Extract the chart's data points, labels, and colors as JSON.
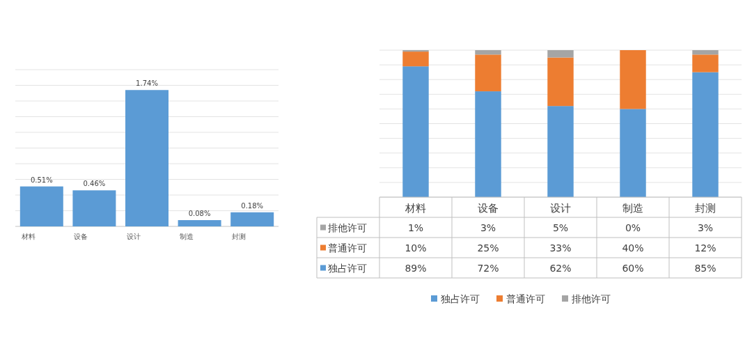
{
  "chart_data": [
    {
      "type": "bar",
      "categories": [
        "材料",
        "设备",
        "设计",
        "制造",
        "封测"
      ],
      "values": [
        0.51,
        0.46,
        1.74,
        0.08,
        0.18
      ],
      "value_labels": [
        "0.51%",
        "0.46%",
        "1.74%",
        "0.08%",
        "0.18%"
      ],
      "color": "#5b9bd5",
      "ylim": [
        0,
        2
      ],
      "yticks": [
        {
          "value": 0,
          "label": null
        },
        {
          "value": 0.2,
          "label": null
        },
        {
          "value": 0.4,
          "label": null
        },
        {
          "value": 0.6,
          "label": null
        },
        {
          "value": 0.8,
          "label": null
        },
        {
          "value": 1.0,
          "label": null
        },
        {
          "value": 1.2,
          "label": null
        },
        {
          "value": 1.4,
          "label": null
        },
        {
          "value": 1.6,
          "label": null
        },
        {
          "value": 1.8,
          "label": null
        },
        {
          "value": 2.0,
          "label": null
        }
      ],
      "grid": "y",
      "tick_labels": "x"
    },
    {
      "type": "bar",
      "stacked": true,
      "categories": [
        "材料",
        "设备",
        "设计",
        "制造",
        "封测"
      ],
      "series": [
        {
          "name": "独占许可",
          "color": "#5b9bd5",
          "values": [
            89,
            72,
            62,
            60,
            85
          ],
          "value_labels": [
            "89%",
            "72%",
            "62%",
            "60%",
            "85%"
          ]
        },
        {
          "name": "普通许可",
          "color": "#ed7d31",
          "values": [
            10,
            25,
            33,
            40,
            12
          ],
          "value_labels": [
            "10%",
            "25%",
            "33%",
            "40%",
            "12%"
          ]
        },
        {
          "name": "排他许可",
          "color": "#a5a5a5",
          "values": [
            1,
            3,
            5,
            0,
            3
          ],
          "value_labels": [
            "1%",
            "3%",
            "5%",
            "0%",
            "3%"
          ]
        }
      ],
      "ylim": [
        0,
        100
      ],
      "yticks": [
        {
          "value": 0,
          "label": null
        },
        {
          "value": 10,
          "label": null
        },
        {
          "value": 20,
          "label": null
        },
        {
          "value": 30,
          "label": null
        },
        {
          "value": 40,
          "label": null
        },
        {
          "value": 50,
          "label": null
        },
        {
          "value": 60,
          "label": null
        },
        {
          "value": 70,
          "label": null
        },
        {
          "value": 80,
          "label": null
        },
        {
          "value": 90,
          "label": null
        },
        {
          "value": 100,
          "label": null
        }
      ],
      "grid": "y",
      "legend": "bottom",
      "tick_labels": "x"
    }
  ]
}
